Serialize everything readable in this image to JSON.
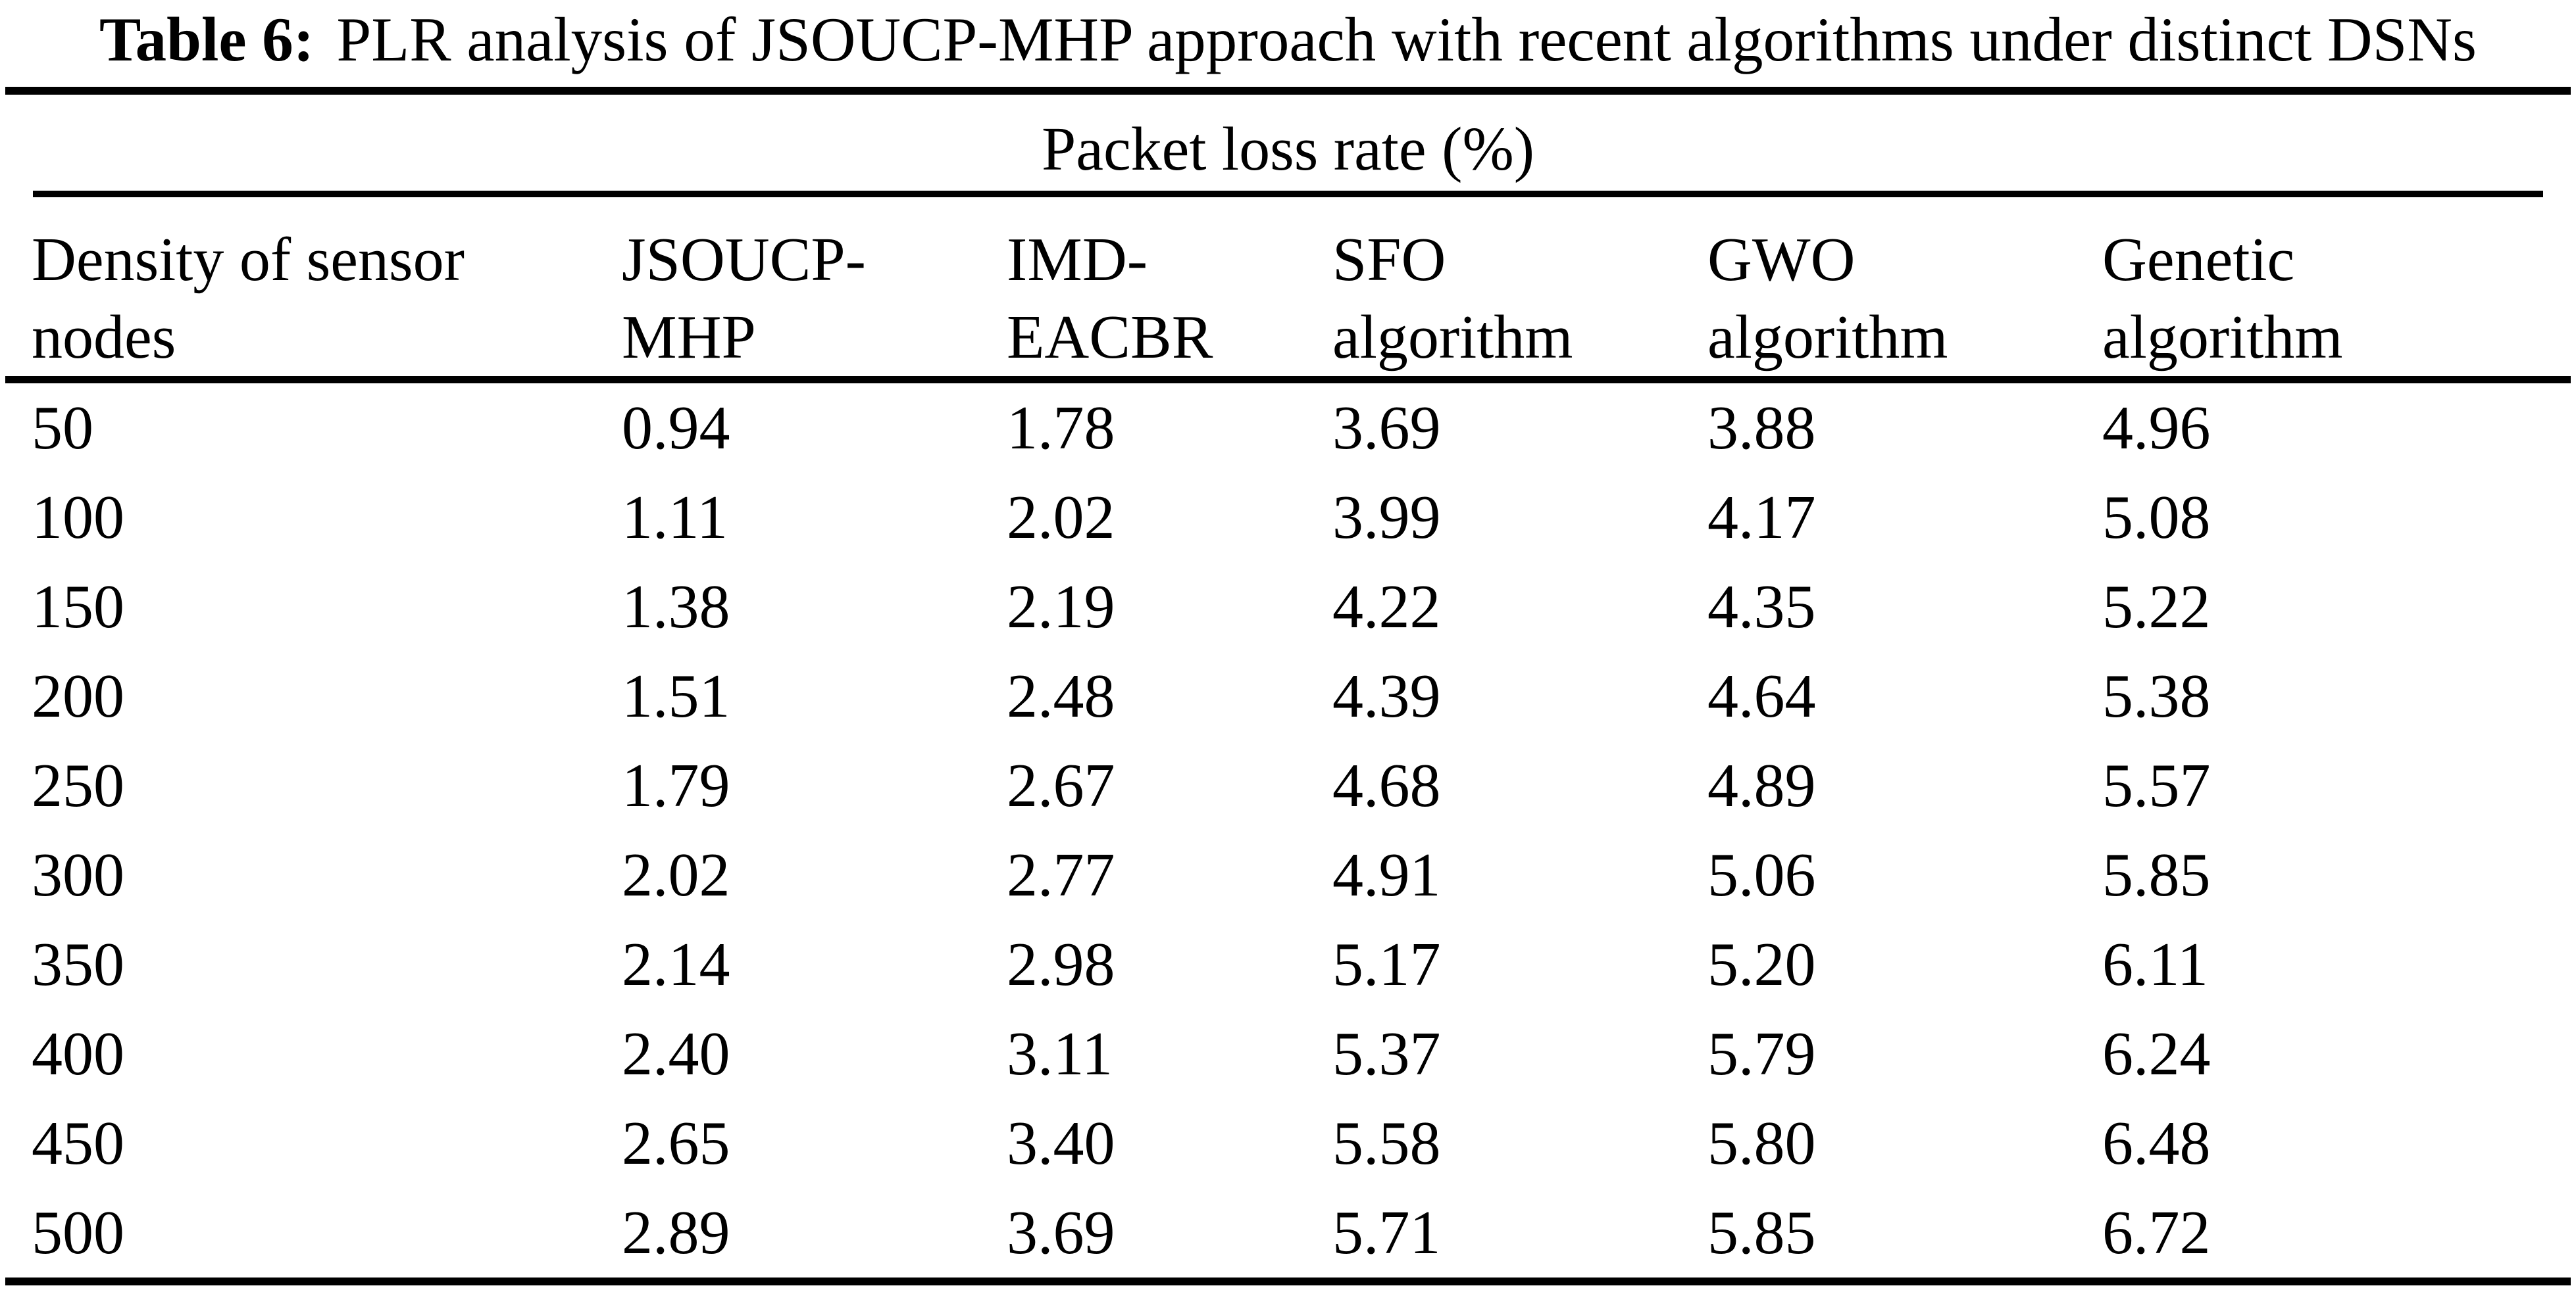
{
  "caption": {
    "label": "Table 6:",
    "text": "PLR analysis of JSOUCP-MHP approach with recent algorithms under distinct DSNs"
  },
  "table": {
    "group_header": "Packet loss rate (%)",
    "columns": [
      "Density of sensor\nnodes",
      "JSOUCP-\nMHP",
      "IMD-\nEACBR",
      "SFO\nalgorithm",
      "GWO\nalgorithm",
      "Genetic\nalgorithm"
    ],
    "rows": [
      [
        "50",
        "0.94",
        "1.78",
        "3.69",
        "3.88",
        "4.96"
      ],
      [
        "100",
        "1.11",
        "2.02",
        "3.99",
        "4.17",
        "5.08"
      ],
      [
        "150",
        "1.38",
        "2.19",
        "4.22",
        "4.35",
        "5.22"
      ],
      [
        "200",
        "1.51",
        "2.48",
        "4.39",
        "4.64",
        "5.38"
      ],
      [
        "250",
        "1.79",
        "2.67",
        "4.68",
        "4.89",
        "5.57"
      ],
      [
        "300",
        "2.02",
        "2.77",
        "4.91",
        "5.06",
        "5.85"
      ],
      [
        "350",
        "2.14",
        "2.98",
        "5.17",
        "5.20",
        "6.11"
      ],
      [
        "400",
        "2.40",
        "3.11",
        "5.37",
        "5.79",
        "6.24"
      ],
      [
        "450",
        "2.65",
        "3.40",
        "5.58",
        "5.80",
        "6.48"
      ],
      [
        "500",
        "2.89",
        "3.69",
        "5.71",
        "5.85",
        "6.72"
      ]
    ]
  },
  "chart_data": {
    "type": "table",
    "title": "Table 6: PLR analysis of JSOUCP-MHP approach with recent algorithms under distinct DSNs",
    "group_header": "Packet loss rate (%)",
    "xlabel": "Density of sensor nodes",
    "categories": [
      50,
      100,
      150,
      200,
      250,
      300,
      350,
      400,
      450,
      500
    ],
    "series": [
      {
        "name": "JSOUCP-MHP",
        "values": [
          0.94,
          1.11,
          1.38,
          1.51,
          1.79,
          2.02,
          2.14,
          2.4,
          2.65,
          2.89
        ]
      },
      {
        "name": "IMD-EACBR",
        "values": [
          1.78,
          2.02,
          2.19,
          2.48,
          2.67,
          2.77,
          2.98,
          3.11,
          3.4,
          3.69
        ]
      },
      {
        "name": "SFO algorithm",
        "values": [
          3.69,
          3.99,
          4.22,
          4.39,
          4.68,
          4.91,
          5.17,
          5.37,
          5.58,
          5.71
        ]
      },
      {
        "name": "GWO algorithm",
        "values": [
          3.88,
          4.17,
          4.35,
          4.64,
          4.89,
          5.06,
          5.2,
          5.79,
          5.8,
          5.85
        ]
      },
      {
        "name": "Genetic algorithm",
        "values": [
          4.96,
          5.08,
          5.22,
          5.38,
          5.57,
          5.85,
          6.11,
          6.24,
          6.48,
          6.72
        ]
      }
    ]
  }
}
